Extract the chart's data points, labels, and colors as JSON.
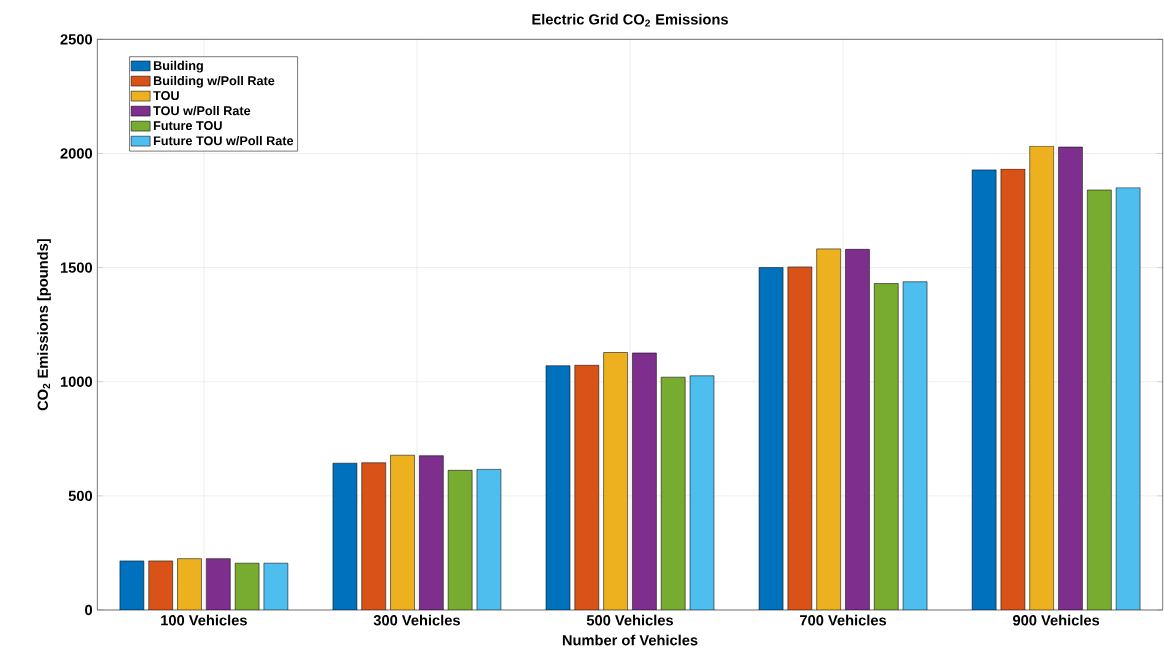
{
  "chart_data": {
    "type": "bar",
    "title": "Electric Grid CO$_{2}$ Emissions",
    "xlabel": "Number of Vehicles",
    "ylabel": "CO$_{2}$ Emissions [pounds]",
    "categories": [
      "100 Vehicles",
      "300 Vehicles",
      "500 Vehicles",
      "700 Vehicles",
      "900 Vehicles"
    ],
    "series": [
      {
        "name": "Building",
        "color": "#0072bd",
        "values": [
          215,
          643,
          1070,
          1500,
          1928
        ]
      },
      {
        "name": "Building w/Poll Rate",
        "color": "#d95319",
        "values": [
          215,
          645,
          1072,
          1503,
          1932
        ]
      },
      {
        "name": "TOU",
        "color": "#edb120",
        "values": [
          225,
          678,
          1128,
          1582,
          2032
        ]
      },
      {
        "name": "TOU w/Poll Rate",
        "color": "#7e2f8e",
        "values": [
          225,
          676,
          1126,
          1580,
          2028
        ]
      },
      {
        "name": "Future TOU",
        "color": "#77ac30",
        "values": [
          205,
          612,
          1020,
          1430,
          1840
        ]
      },
      {
        "name": "Future TOU w/Poll Rate",
        "color": "#4dbeee",
        "values": [
          205,
          616,
          1026,
          1438,
          1850
        ]
      }
    ],
    "ylim": [
      0,
      2500
    ],
    "yticks": [
      0,
      500,
      1000,
      1500,
      2000,
      2500
    ],
    "grid": true,
    "legend": "top left"
  }
}
